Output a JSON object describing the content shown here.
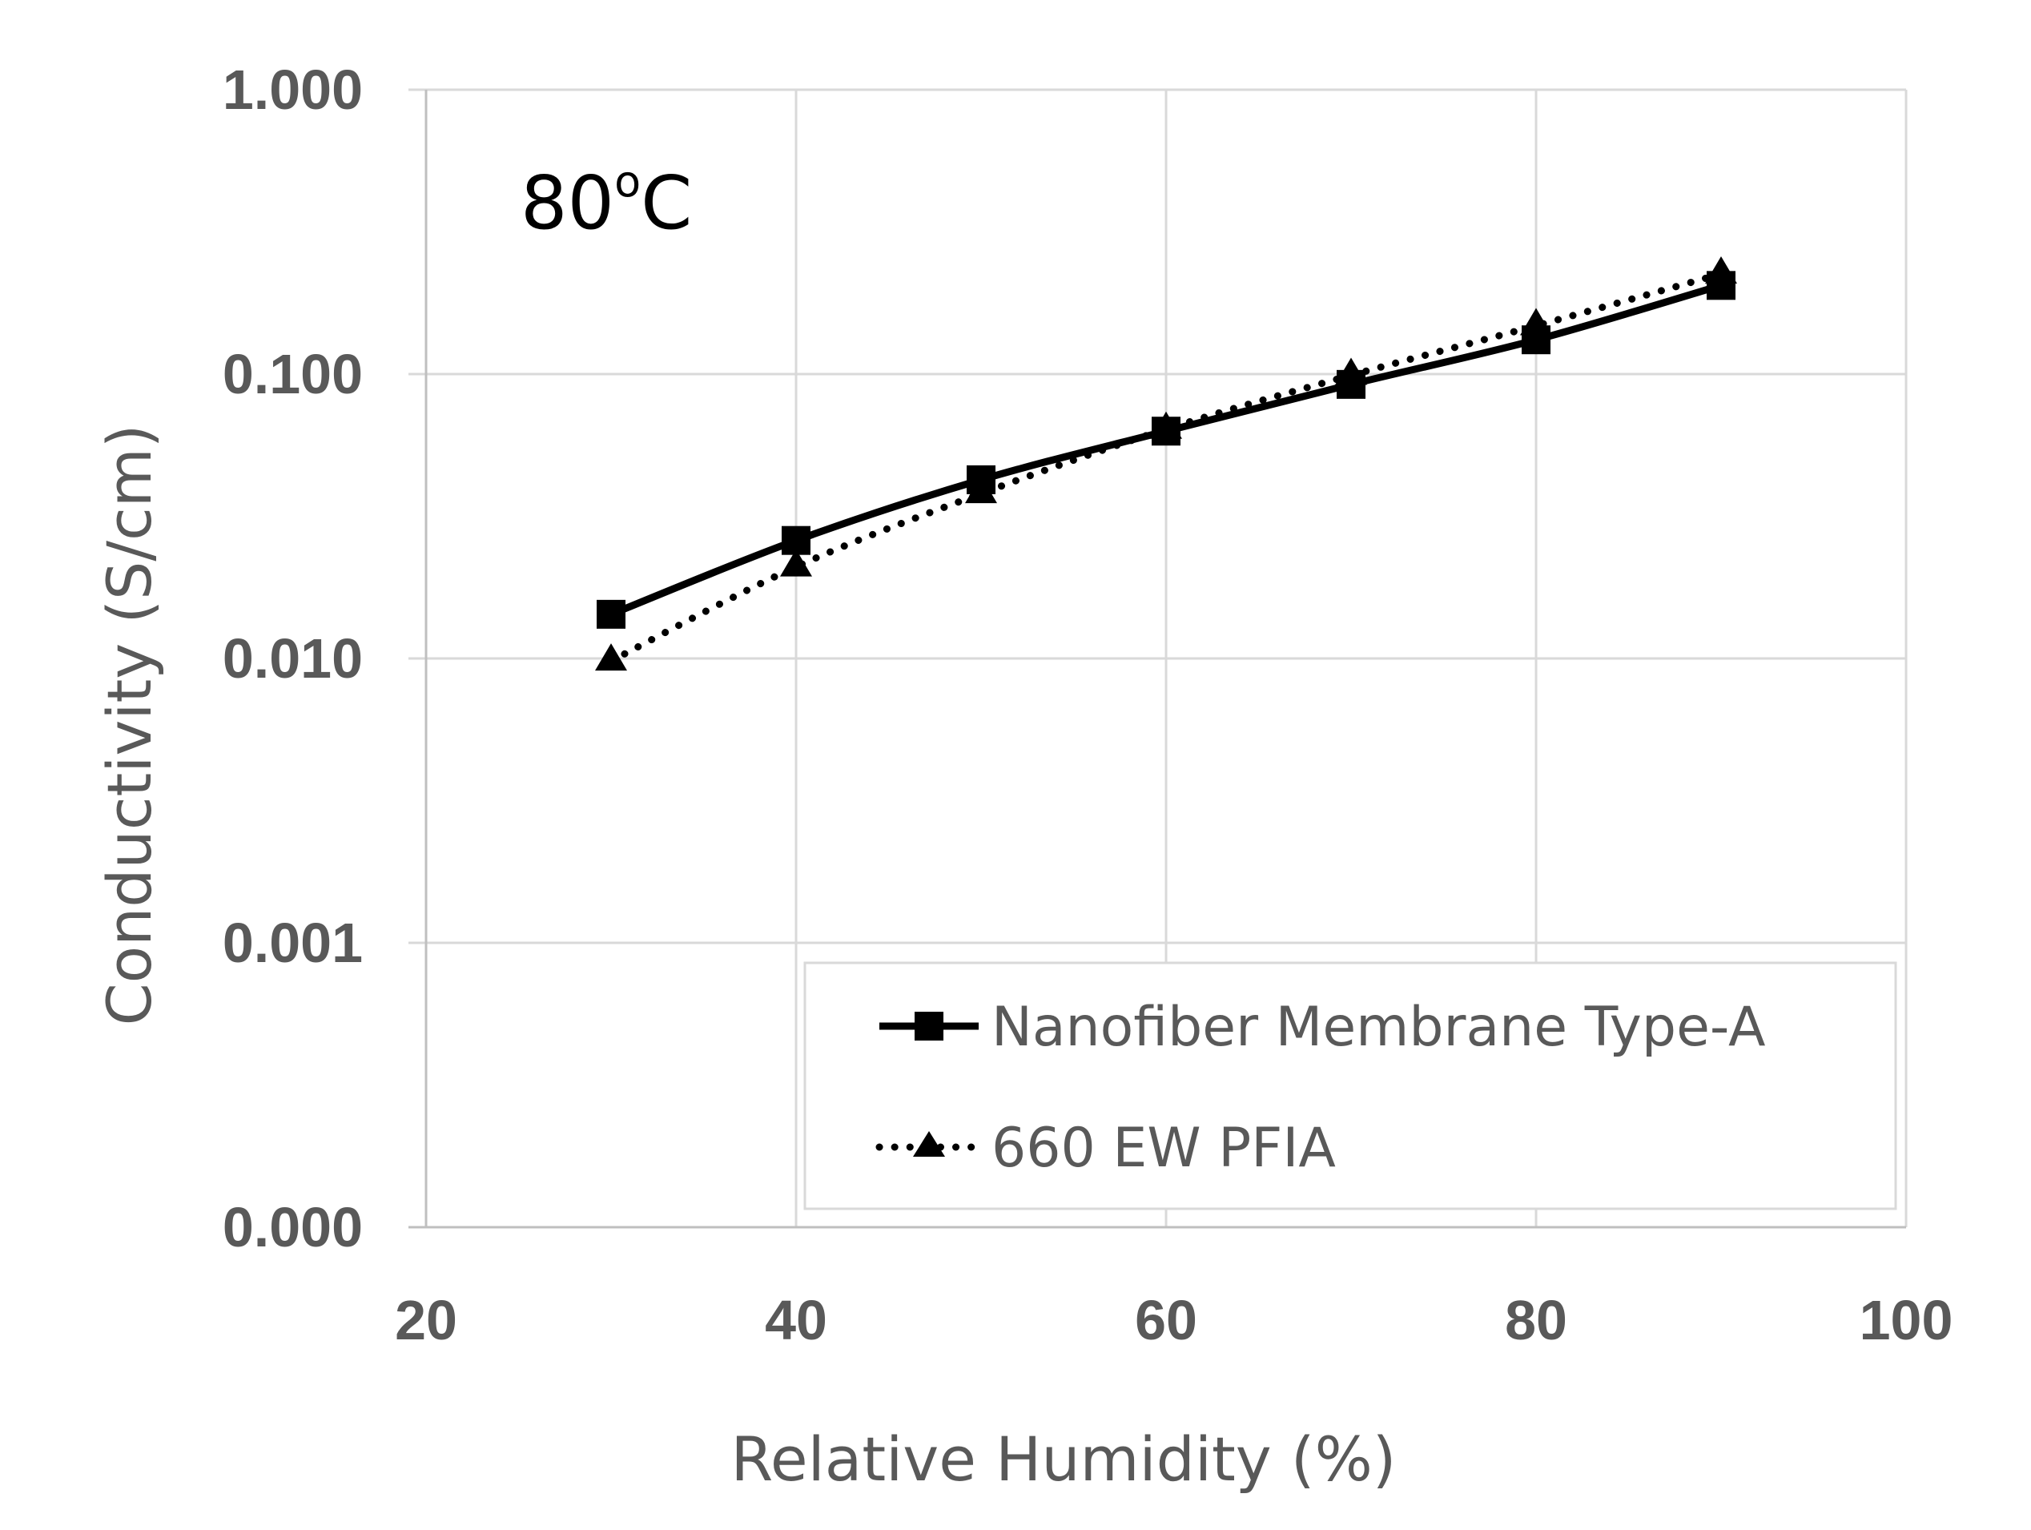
{
  "chart_data": {
    "type": "line",
    "annotation": {
      "main": "80",
      "sup": "o",
      "tail": "C"
    },
    "xlabel": "Relative Humidity (%)",
    "ylabel": "Conductivity (S/cm)",
    "xlim": [
      20,
      100
    ],
    "x_ticks": [
      20,
      40,
      60,
      80,
      100
    ],
    "y_scale": "log",
    "y_ticks": [
      {
        "value": 0.0001,
        "label": "0.000"
      },
      {
        "value": 0.001,
        "label": "0.001"
      },
      {
        "value": 0.01,
        "label": "0.010"
      },
      {
        "value": 0.1,
        "label": "0.100"
      },
      {
        "value": 1,
        "label": "1.000"
      }
    ],
    "grid": true,
    "legend_position": "bottom-right",
    "series": [
      {
        "name": "Nanofiber Membrane Type-A",
        "style": "solid",
        "marker": "square",
        "color": "#000000",
        "x": [
          30,
          40,
          50,
          60,
          70,
          80,
          90
        ],
        "values": [
          0.0143,
          0.026,
          0.0425,
          0.063,
          0.092,
          0.132,
          0.205
        ]
      },
      {
        "name": "660 EW PFIA",
        "style": "dotted",
        "marker": "triangle",
        "color": "#000000",
        "x": [
          30,
          40,
          50,
          60,
          70,
          80,
          90
        ],
        "values": [
          0.0098,
          0.021,
          0.038,
          0.064,
          0.099,
          0.148,
          0.225
        ]
      }
    ]
  }
}
